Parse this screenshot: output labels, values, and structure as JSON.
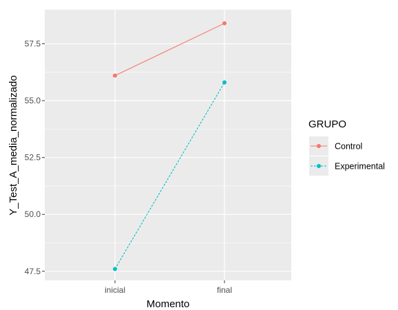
{
  "chart_data": {
    "type": "line",
    "categories": [
      "inicial",
      "final"
    ],
    "xlabel": "Momento",
    "ylabel": "Y_Test_A_media_normalizado",
    "ylim": [
      47.1,
      59.0
    ],
    "yticks": [
      47.5,
      50.0,
      52.5,
      55.0,
      57.5
    ],
    "ytick_labels": [
      "47.5",
      "50.0",
      "52.5",
      "55.0",
      "57.5"
    ],
    "grid": true,
    "legend": {
      "title": "GRUPO",
      "placement": "right"
    },
    "series": [
      {
        "name": "Control",
        "values": [
          56.1,
          58.4
        ],
        "color": "#F8766D",
        "linestyle": "solid"
      },
      {
        "name": "Experimental",
        "values": [
          47.6,
          55.8
        ],
        "color": "#00BFC4",
        "linestyle": "dashed"
      }
    ]
  },
  "colors": {
    "panel_background": "#EBEBEB",
    "grid_line": "#FFFFFF"
  }
}
